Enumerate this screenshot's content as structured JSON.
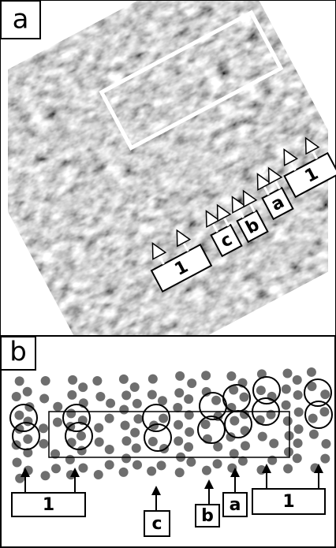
{
  "panels": [
    {
      "label": "a",
      "markers": [
        "1",
        "c",
        "b",
        "a",
        "1"
      ]
    },
    {
      "label": "b",
      "markers": [
        "1",
        "c",
        "b",
        "a",
        "1"
      ]
    }
  ]
}
